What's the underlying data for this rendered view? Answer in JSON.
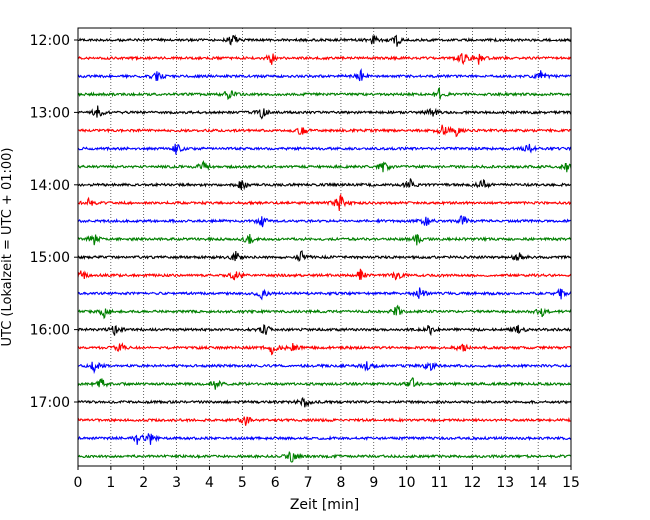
{
  "chart_data": {
    "type": "line",
    "title": "",
    "xlabel": "Zeit  [min]",
    "ylabel": "UTC (Lokalzeit = UTC + 01:00)",
    "xlim": [
      0,
      15
    ],
    "x_ticks": [
      "0",
      "1",
      "2",
      "3",
      "4",
      "5",
      "6",
      "7",
      "8",
      "9",
      "10",
      "11",
      "12",
      "13",
      "14",
      "15"
    ],
    "y_tick_labels": [
      "12:00",
      "13:00",
      "14:00",
      "15:00",
      "16:00",
      "17:00"
    ],
    "grid": "vertical dotted at each minute",
    "trace_interval_minutes": 15,
    "color_cycle": [
      "#000000",
      "#ff0000",
      "#0000ff",
      "#008000"
    ],
    "traces": [
      {
        "start": "12:00",
        "events_min": [
          4.7,
          9.0,
          9.7
        ],
        "color": "#000000"
      },
      {
        "start": "12:15",
        "events_min": [
          5.9,
          11.7,
          12.2
        ],
        "color": "#ff0000"
      },
      {
        "start": "12:30",
        "events_min": [
          2.4,
          8.6,
          14.1
        ],
        "color": "#0000ff"
      },
      {
        "start": "12:45",
        "events_min": [
          4.6,
          11.0
        ],
        "color": "#008000"
      },
      {
        "start": "13:00",
        "events_min": [
          0.6,
          5.6,
          10.8
        ],
        "color": "#000000"
      },
      {
        "start": "13:15",
        "events_min": [
          6.8,
          11.1,
          11.5
        ],
        "color": "#ff0000"
      },
      {
        "start": "13:30",
        "events_min": [
          3.0,
          13.7
        ],
        "color": "#0000ff"
      },
      {
        "start": "13:45",
        "events_min": [
          3.8,
          9.3,
          14.9
        ],
        "color": "#008000"
      },
      {
        "start": "14:00",
        "events_min": [
          5.0,
          10.1,
          12.3
        ],
        "color": "#000000"
      },
      {
        "start": "14:15",
        "events_min": [
          0.3,
          7.9,
          8.0
        ],
        "color": "#ff0000"
      },
      {
        "start": "14:30",
        "events_min": [
          5.6,
          10.6,
          11.7
        ],
        "color": "#0000ff"
      },
      {
        "start": "14:45",
        "events_min": [
          0.5,
          5.2,
          10.3
        ],
        "color": "#008000"
      },
      {
        "start": "15:00",
        "events_min": [
          4.8,
          6.8,
          13.4
        ],
        "color": "#000000"
      },
      {
        "start": "15:15",
        "events_min": [
          0.1,
          4.8,
          8.6,
          9.7
        ],
        "color": "#ff0000"
      },
      {
        "start": "15:30",
        "events_min": [
          5.6,
          10.4,
          14.7
        ],
        "color": "#0000ff"
      },
      {
        "start": "15:45",
        "events_min": [
          0.8,
          9.7,
          14.1
        ],
        "color": "#008000"
      },
      {
        "start": "16:00",
        "events_min": [
          1.1,
          5.7,
          10.7,
          13.4
        ],
        "color": "#000000"
      },
      {
        "start": "16:15",
        "events_min": [
          1.3,
          5.9,
          6.5,
          11.7
        ],
        "color": "#ff0000"
      },
      {
        "start": "16:30",
        "events_min": [
          0.5,
          8.8,
          10.7
        ],
        "color": "#0000ff"
      },
      {
        "start": "16:45",
        "events_min": [
          0.7,
          4.2,
          10.2
        ],
        "color": "#008000"
      },
      {
        "start": "17:00",
        "events_min": [
          6.9
        ],
        "color": "#000000"
      },
      {
        "start": "17:15",
        "events_min": [
          5.1
        ],
        "color": "#ff0000"
      },
      {
        "start": "17:30",
        "events_min": [
          1.8,
          2.2
        ],
        "color": "#0000ff"
      },
      {
        "start": "17:45",
        "events_min": [
          6.5
        ],
        "color": "#008000"
      }
    ]
  }
}
